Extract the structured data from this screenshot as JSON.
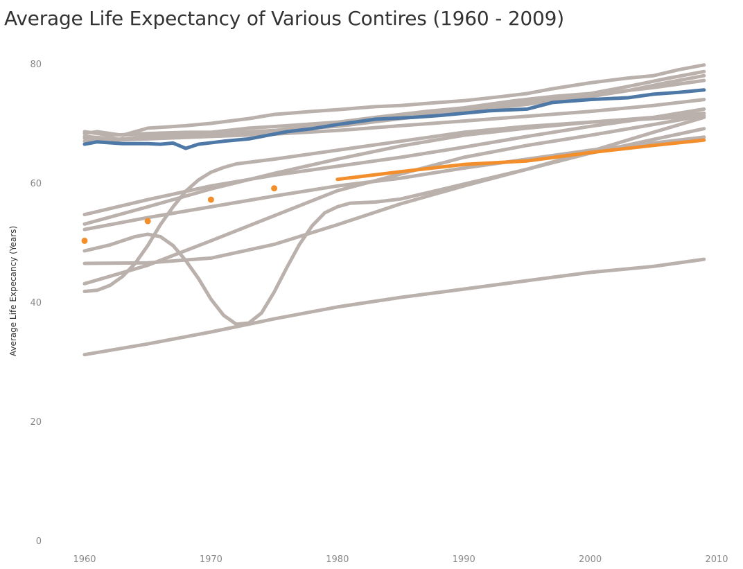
{
  "chart_data": {
    "type": "line",
    "title": "Average Life Expectancy of Various Contires (1960 - 2009)",
    "xlabel": "",
    "ylabel": "Average Life Expecancy (Years)",
    "xlim": [
      1956,
      2010
    ],
    "ylim": [
      0,
      80
    ],
    "x_ticks": [
      "1960",
      "1970",
      "1980",
      "1990",
      "2000",
      "2010"
    ],
    "y_ticks": [
      "0",
      "20",
      "40",
      "60",
      "80"
    ],
    "grid": false,
    "legend": "none",
    "colors": {
      "background_series": "#bab0ac",
      "highlight_blue": "#4e79a7",
      "highlight_orange": "#f28e2b"
    },
    "series": [
      {
        "color": "#bab0ac",
        "points": [
          [
            1960,
            68.3
          ],
          [
            1961,
            68.6
          ],
          [
            1963,
            68.0
          ],
          [
            1965,
            69.2
          ],
          [
            1968,
            69.6
          ],
          [
            1970,
            70.0
          ],
          [
            1973,
            70.8
          ],
          [
            1975,
            71.5
          ],
          [
            1978,
            72.0
          ],
          [
            1980,
            72.3
          ],
          [
            1983,
            72.8
          ],
          [
            1985,
            73.0
          ],
          [
            1988,
            73.5
          ],
          [
            1990,
            73.8
          ],
          [
            1993,
            74.5
          ],
          [
            1995,
            75.0
          ],
          [
            1997,
            75.8
          ],
          [
            2000,
            76.8
          ],
          [
            2003,
            77.6
          ],
          [
            2005,
            78.0
          ],
          [
            2007,
            79.0
          ],
          [
            2009,
            79.8
          ]
        ]
      },
      {
        "color": "#bab0ac",
        "points": [
          [
            1960,
            68.6
          ],
          [
            1962,
            68.0
          ],
          [
            1965,
            68.3
          ],
          [
            1968,
            68.5
          ],
          [
            1970,
            68.5
          ],
          [
            1973,
            69.2
          ],
          [
            1976,
            69.6
          ],
          [
            1980,
            70.2
          ],
          [
            1983,
            71.0
          ],
          [
            1987,
            72.0
          ],
          [
            1990,
            72.6
          ],
          [
            1994,
            73.8
          ],
          [
            1997,
            74.5
          ],
          [
            2000,
            75.0
          ],
          [
            2003,
            76.2
          ],
          [
            2006,
            77.5
          ],
          [
            2009,
            78.7
          ]
        ]
      },
      {
        "color": "#bab0ac",
        "points": [
          [
            1960,
            67.8
          ],
          [
            1963,
            67.3
          ],
          [
            1965,
            67.6
          ],
          [
            1970,
            68.0
          ],
          [
            1975,
            68.8
          ],
          [
            1980,
            70.0
          ],
          [
            1985,
            71.2
          ],
          [
            1990,
            72.5
          ],
          [
            1995,
            73.6
          ],
          [
            2000,
            74.5
          ],
          [
            2003,
            75.5
          ],
          [
            2006,
            76.8
          ],
          [
            2009,
            78.0
          ]
        ]
      },
      {
        "color": "#bab0ac",
        "points": [
          [
            1960,
            67.5
          ],
          [
            1962,
            67.2
          ],
          [
            1965,
            67.8
          ],
          [
            1970,
            68.3
          ],
          [
            1975,
            68.8
          ],
          [
            1980,
            69.5
          ],
          [
            1985,
            70.8
          ],
          [
            1990,
            72.0
          ],
          [
            1995,
            73.2
          ],
          [
            2000,
            74.8
          ],
          [
            2005,
            76.0
          ],
          [
            2009,
            77.2
          ]
        ]
      },
      {
        "color": "#bab0ac",
        "points": [
          [
            1960,
            67.0
          ],
          [
            1965,
            67.4
          ],
          [
            1970,
            67.8
          ],
          [
            1975,
            68.2
          ],
          [
            1980,
            68.8
          ],
          [
            1985,
            69.6
          ],
          [
            1990,
            70.4
          ],
          [
            1995,
            71.2
          ],
          [
            2000,
            72.0
          ],
          [
            2005,
            73.0
          ],
          [
            2009,
            74.0
          ]
        ]
      },
      {
        "color": "#bab0ac",
        "points": [
          [
            1960,
            54.7
          ],
          [
            1965,
            57.2
          ],
          [
            1970,
            59.5
          ],
          [
            1975,
            61.3
          ],
          [
            1980,
            62.8
          ],
          [
            1985,
            64.3
          ],
          [
            1990,
            66.0
          ],
          [
            1995,
            67.8
          ],
          [
            2000,
            69.5
          ],
          [
            2005,
            71.0
          ],
          [
            2009,
            72.4
          ]
        ]
      },
      {
        "color": "#bab0ac",
        "points": [
          [
            1960,
            53.1
          ],
          [
            1965,
            56.0
          ],
          [
            1970,
            59.0
          ],
          [
            1975,
            61.6
          ],
          [
            1980,
            64.0
          ],
          [
            1985,
            66.2
          ],
          [
            1990,
            68.0
          ],
          [
            1995,
            69.2
          ],
          [
            2000,
            70.2
          ],
          [
            2005,
            71.0
          ],
          [
            2009,
            71.7
          ]
        ]
      },
      {
        "color": "#bab0ac",
        "points": [
          [
            1960,
            52.2
          ],
          [
            1965,
            54.2
          ],
          [
            1970,
            56.0
          ],
          [
            1975,
            57.8
          ],
          [
            1980,
            59.5
          ],
          [
            1985,
            60.8
          ],
          [
            1990,
            62.5
          ],
          [
            1995,
            64.0
          ],
          [
            2000,
            65.5
          ],
          [
            2005,
            66.7
          ],
          [
            2009,
            67.7
          ]
        ]
      },
      {
        "color": "#bab0ac",
        "points": [
          [
            1960,
            41.8
          ],
          [
            1961,
            42.0
          ],
          [
            1962,
            42.8
          ],
          [
            1963,
            44.3
          ],
          [
            1964,
            46.5
          ],
          [
            1965,
            49.5
          ],
          [
            1966,
            53.0
          ],
          [
            1967,
            56.0
          ],
          [
            1968,
            58.6
          ],
          [
            1969,
            60.5
          ],
          [
            1970,
            61.8
          ],
          [
            1971,
            62.6
          ],
          [
            1972,
            63.2
          ],
          [
            1975,
            64.0
          ],
          [
            1980,
            65.5
          ],
          [
            1985,
            67.0
          ],
          [
            1990,
            68.5
          ],
          [
            1995,
            69.5
          ],
          [
            2000,
            70.2
          ],
          [
            2005,
            70.8
          ],
          [
            2009,
            71.2
          ]
        ]
      },
      {
        "color": "#bab0ac",
        "points": [
          [
            1960,
            48.6
          ],
          [
            1962,
            49.6
          ],
          [
            1964,
            51.0
          ],
          [
            1965,
            51.4
          ],
          [
            1966,
            51.0
          ],
          [
            1967,
            49.5
          ],
          [
            1968,
            47.0
          ],
          [
            1969,
            44.0
          ],
          [
            1970,
            40.5
          ],
          [
            1971,
            37.8
          ],
          [
            1972,
            36.3
          ],
          [
            1973,
            36.5
          ],
          [
            1974,
            38.2
          ],
          [
            1975,
            41.7
          ],
          [
            1976,
            45.8
          ],
          [
            1977,
            49.7
          ],
          [
            1978,
            52.8
          ],
          [
            1979,
            55.0
          ],
          [
            1980,
            56.0
          ],
          [
            1981,
            56.6
          ],
          [
            1983,
            56.8
          ],
          [
            1985,
            57.3
          ],
          [
            1990,
            59.8
          ],
          [
            1995,
            62.3
          ],
          [
            2000,
            65.0
          ],
          [
            2005,
            67.3
          ],
          [
            2009,
            69.1
          ]
        ]
      },
      {
        "color": "#bab0ac",
        "points": [
          [
            1960,
            43.1
          ],
          [
            1965,
            46.2
          ],
          [
            1970,
            50.3
          ],
          [
            1975,
            54.5
          ],
          [
            1980,
            58.7
          ],
          [
            1985,
            61.5
          ],
          [
            1990,
            64.3
          ],
          [
            1995,
            66.3
          ],
          [
            2000,
            68.0
          ],
          [
            2005,
            69.8
          ],
          [
            2009,
            71.3
          ]
        ]
      },
      {
        "color": "#bab0ac",
        "points": [
          [
            1960,
            46.5
          ],
          [
            1965,
            46.6
          ],
          [
            1970,
            47.4
          ],
          [
            1975,
            49.7
          ],
          [
            1980,
            53.0
          ],
          [
            1985,
            56.5
          ],
          [
            1990,
            59.5
          ],
          [
            1995,
            62.3
          ],
          [
            2000,
            65.3
          ],
          [
            2005,
            68.5
          ],
          [
            2009,
            71.0
          ]
        ]
      },
      {
        "color": "#bab0ac",
        "points": [
          [
            1960,
            31.2
          ],
          [
            1965,
            33.0
          ],
          [
            1970,
            35.0
          ],
          [
            1975,
            37.2
          ],
          [
            1980,
            39.2
          ],
          [
            1985,
            40.8
          ],
          [
            1990,
            42.2
          ],
          [
            1995,
            43.6
          ],
          [
            2000,
            45.0
          ],
          [
            2005,
            46.0
          ],
          [
            2009,
            47.2
          ]
        ]
      },
      {
        "color": "#4e79a7",
        "points": [
          [
            1960,
            66.5
          ],
          [
            1961,
            66.9
          ],
          [
            1963,
            66.6
          ],
          [
            1965,
            66.6
          ],
          [
            1966,
            66.5
          ],
          [
            1967,
            66.7
          ],
          [
            1968,
            65.8
          ],
          [
            1969,
            66.5
          ],
          [
            1971,
            67.0
          ],
          [
            1973,
            67.4
          ],
          [
            1976,
            68.6
          ],
          [
            1978,
            69.1
          ],
          [
            1980,
            69.8
          ],
          [
            1983,
            70.7
          ],
          [
            1986,
            71.0
          ],
          [
            1988,
            71.3
          ],
          [
            1990,
            71.7
          ],
          [
            1992,
            72.1
          ],
          [
            1995,
            72.4
          ],
          [
            1997,
            73.5
          ],
          [
            2000,
            74.0
          ],
          [
            2003,
            74.3
          ],
          [
            2005,
            74.9
          ],
          [
            2007,
            75.2
          ],
          [
            2009,
            75.6
          ]
        ]
      },
      {
        "color": "#f28e2b",
        "points": [
          [
            1980,
            60.6
          ],
          [
            1985,
            61.9
          ],
          [
            1990,
            63.1
          ],
          [
            1995,
            63.7
          ],
          [
            2000,
            65.1
          ],
          [
            2005,
            66.3
          ],
          [
            2009,
            67.2
          ]
        ]
      }
    ],
    "points_series": {
      "color": "#f28e2b",
      "points": [
        [
          1960,
          50.3
        ],
        [
          1965,
          53.6
        ],
        [
          1970,
          57.2
        ],
        [
          1975,
          59.1
        ]
      ]
    }
  }
}
